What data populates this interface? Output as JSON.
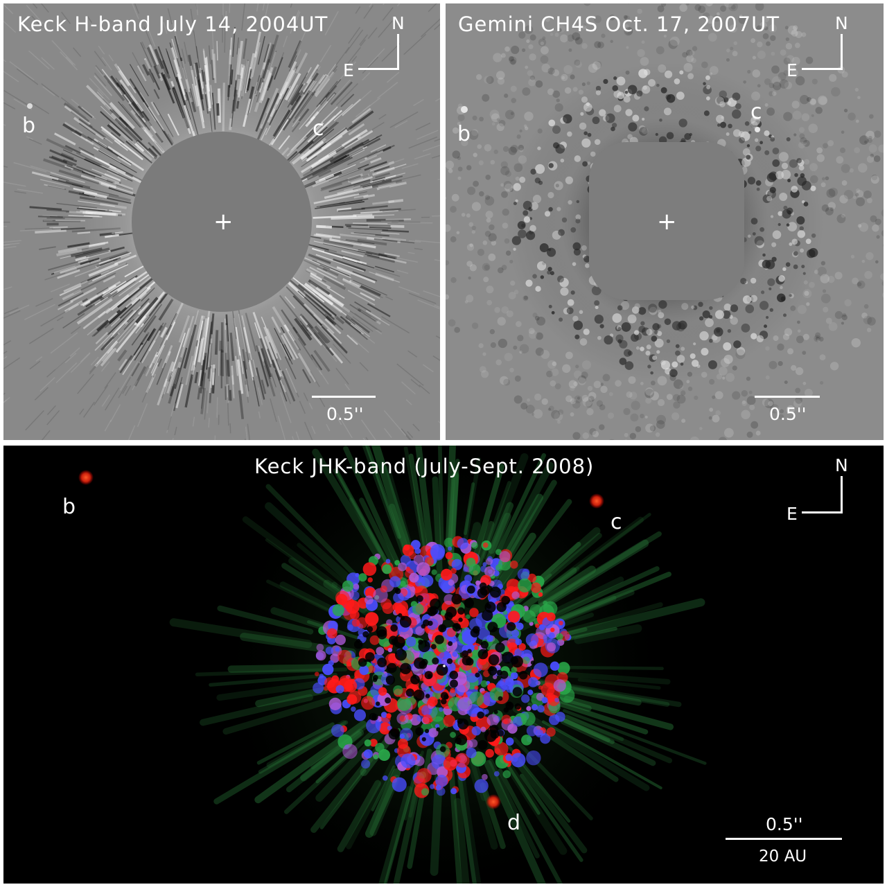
{
  "panels": {
    "top_left": {
      "title": "Keck H-band July 14, 2004UT",
      "compass_n": "N",
      "compass_e": "E",
      "planet_b": "b",
      "planet_c": "c",
      "center_mark": "+",
      "scale_label": "0.5''"
    },
    "top_right": {
      "title": "Gemini CH4S Oct. 17, 2007UT",
      "compass_n": "N",
      "compass_e": "E",
      "planet_b": "b",
      "planet_c": "c",
      "center_mark": "+",
      "scale_label": "0.5''"
    },
    "bottom": {
      "title": "Keck JHK-band (July-Sept. 2008)",
      "compass_n": "N",
      "compass_e": "E",
      "planet_b": "b",
      "planet_c": "c",
      "planet_d": "d",
      "scale_label": "0.5''",
      "scale_au": "20 AU"
    }
  },
  "colors": {
    "gray_field": "#8a8a8a",
    "mask": "#7a7a7a",
    "planet_red": "#ff3a1a",
    "speckle_blue": "#4a4dff",
    "speckle_red": "#ff1a1a",
    "speckle_green": "#2aa84a"
  }
}
